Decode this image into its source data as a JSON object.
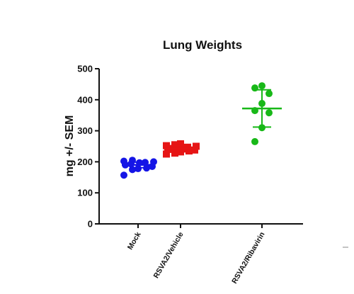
{
  "chart_data": {
    "type": "scatter",
    "title": "Lung Weights",
    "xlabel": "",
    "ylabel": "mg +/- SEM",
    "ylim": [
      0,
      500
    ],
    "yticks": [
      "0",
      "100",
      "200",
      "300",
      "400",
      "500"
    ],
    "categories": [
      "Mock",
      "RSVA2/Vehicle",
      "RSVA2/Ribavirin"
    ],
    "grid": false,
    "series": [
      {
        "category": "Mock",
        "color": "#1515e6",
        "marker": "circle",
        "values": [
          205,
          202,
          200,
          198,
          197,
          193,
          190,
          185,
          180,
          178,
          175,
          157
        ],
        "mean": 190,
        "error": 9
      },
      {
        "category": "RSVA2/Vehicle",
        "color": "#e61515",
        "marker": "square",
        "values": [
          258,
          255,
          252,
          250,
          247,
          245,
          243,
          240,
          238,
          235,
          232,
          228,
          225
        ],
        "mean": 242,
        "error": 10
      },
      {
        "category": "RSVA2/Ribavirin",
        "color": "#18b818",
        "marker": "circle",
        "values": [
          445,
          438,
          420,
          388,
          365,
          358,
          310,
          265
        ],
        "mean": 372,
        "error": 60
      }
    ]
  }
}
